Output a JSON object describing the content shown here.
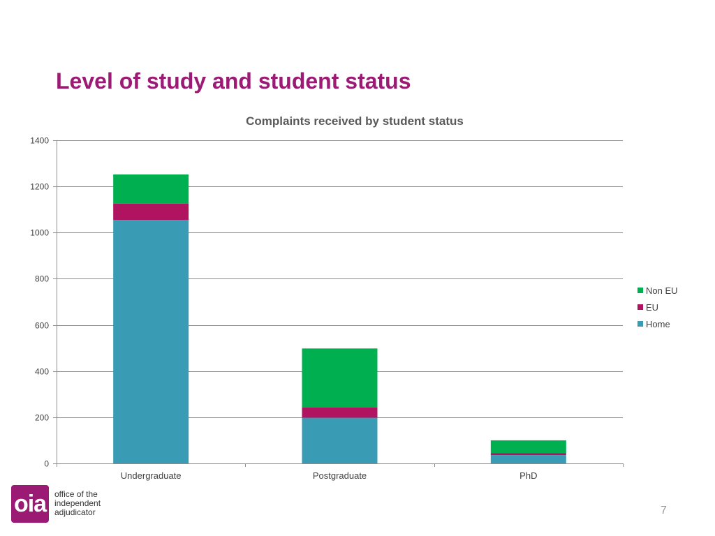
{
  "slide": {
    "title": "Level of study and student status",
    "page_number": "7"
  },
  "logo": {
    "mark": "oia",
    "lines": [
      "office of the",
      "independent",
      "adjudicator"
    ]
  },
  "colors": {
    "title": "#9b1b74",
    "home": "#3a9bb5",
    "eu": "#b0135f",
    "non_eu": "#00b050",
    "gridline": "#8c8c8c",
    "text": "#404040"
  },
  "chart_data": {
    "type": "bar",
    "stacked": true,
    "title": "Complaints received by student status",
    "xlabel": "",
    "ylabel": "",
    "categories": [
      "Undergraduate",
      "Postgraduate",
      "PhD"
    ],
    "series": [
      {
        "name": "Home",
        "values": [
          1055,
          198,
          36
        ],
        "color": "#3a9bb5"
      },
      {
        "name": "EU",
        "values": [
          70,
          45,
          9
        ],
        "color": "#b0135f"
      },
      {
        "name": "Non EU",
        "values": [
          127,
          255,
          55
        ],
        "color": "#00b050"
      }
    ],
    "ylim": [
      0,
      1400
    ],
    "yticks": [
      0,
      200,
      400,
      600,
      800,
      1000,
      1200,
      1400
    ],
    "grid": true,
    "legend_position": "right",
    "legend_order": [
      "Non EU",
      "EU",
      "Home"
    ]
  }
}
